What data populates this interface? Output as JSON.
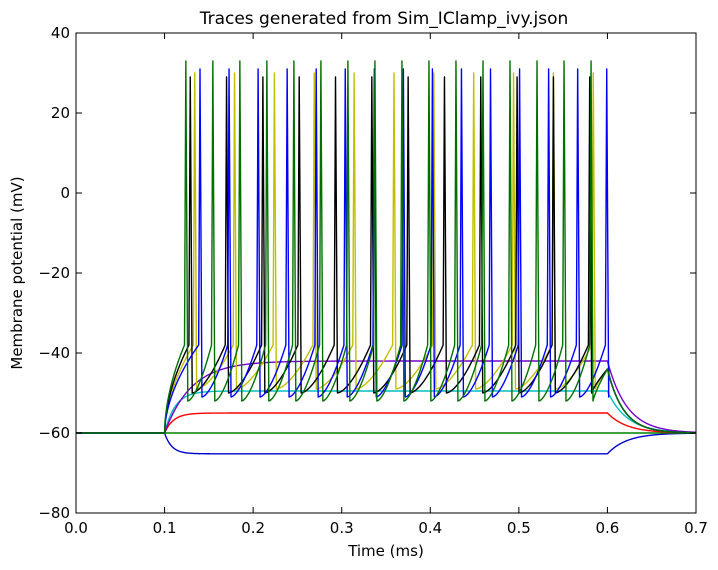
{
  "chart_data": {
    "type": "line",
    "title": "Traces generated from Sim_IClamp_ivy.json",
    "xlabel": "Time (ms)",
    "ylabel": "Membrane potential (mV)",
    "xlim": [
      0.0,
      0.7
    ],
    "ylim": [
      -80,
      40
    ],
    "xticks": [
      0.0,
      0.1,
      0.2,
      0.3,
      0.4,
      0.5,
      0.6,
      0.7
    ],
    "xtick_labels": [
      "0.0",
      "0.1",
      "0.2",
      "0.3",
      "0.4",
      "0.5",
      "0.6",
      "0.7"
    ],
    "yticks": [
      -80,
      -60,
      -40,
      -20,
      0,
      20,
      40
    ],
    "ytick_labels": [
      "−80",
      "−60",
      "−40",
      "−20",
      "0",
      "20",
      "40"
    ],
    "grid": false,
    "legend": false,
    "stim_start": 0.1,
    "stim_end": 0.6,
    "rest": -60,
    "series": [
      {
        "color": "#0000cc",
        "type": "sub",
        "plateau": -65.2,
        "tau": 0.008
      },
      {
        "color": "#008000",
        "type": "sub",
        "plateau": -60.0,
        "tau": 0.008
      },
      {
        "color": "#ff0000",
        "type": "sub",
        "plateau": -55.0,
        "tau": 0.01
      },
      {
        "color": "#00bfbf",
        "type": "sub",
        "plateau": -49.5,
        "tau": 0.012
      },
      {
        "color": "#7700cc",
        "type": "sub",
        "plateau": -42.0,
        "tau": 0.03
      },
      {
        "color": "#c0c000",
        "type": "spike",
        "first": 0.134,
        "isi": 0.045,
        "trough": -49,
        "peak": 30
      },
      {
        "color": "#000000",
        "type": "spike",
        "first": 0.129,
        "isi": 0.041,
        "trough": -50,
        "peak": 29
      },
      {
        "color": "#0000ff",
        "type": "spike",
        "first": 0.14,
        "isi": 0.0328,
        "trough": -51,
        "peak": 31
      },
      {
        "color": "#007000",
        "type": "spike",
        "first": 0.124,
        "isi": 0.0305,
        "trough": -52,
        "peak": 33
      }
    ]
  }
}
